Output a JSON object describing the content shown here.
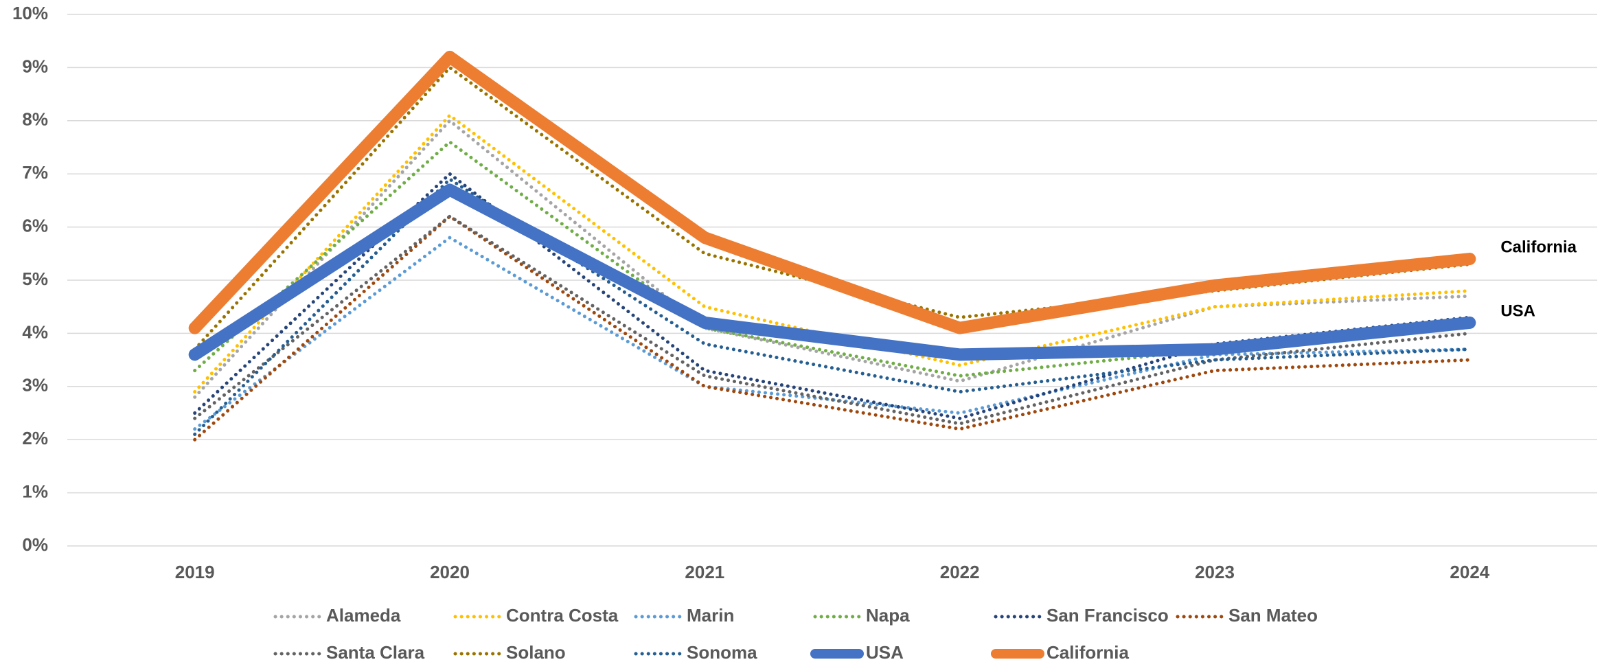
{
  "chart_data": {
    "type": "line",
    "categories": [
      "2019",
      "2020",
      "2021",
      "2022",
      "2023",
      "2024"
    ],
    "ylim": [
      0,
      10
    ],
    "yticks": [
      {
        "value": 0,
        "label": "0%"
      },
      {
        "value": 1,
        "label": "1%"
      },
      {
        "value": 2,
        "label": "2%"
      },
      {
        "value": 3,
        "label": "3%"
      },
      {
        "value": 4,
        "label": "4%"
      },
      {
        "value": 5,
        "label": "5%"
      },
      {
        "value": 6,
        "label": "6%"
      },
      {
        "value": 7,
        "label": "7%"
      },
      {
        "value": 8,
        "label": "8%"
      },
      {
        "value": 9,
        "label": "9%"
      },
      {
        "value": 10,
        "label": "10%"
      }
    ],
    "grid": true,
    "legend": "bottom",
    "series": [
      {
        "name": "Alameda",
        "color": "#a5a5a5",
        "style": "dotted",
        "values": [
          2.8,
          8.0,
          4.1,
          3.1,
          4.5,
          4.7
        ]
      },
      {
        "name": "Contra Costa",
        "color": "#ffc000",
        "style": "dotted",
        "values": [
          2.9,
          8.1,
          4.5,
          3.4,
          4.5,
          4.8
        ]
      },
      {
        "name": "Marin",
        "color": "#5b9bd5",
        "style": "dotted",
        "values": [
          2.2,
          5.8,
          3.0,
          2.5,
          3.6,
          3.7
        ]
      },
      {
        "name": "Napa",
        "color": "#70ad47",
        "style": "dotted",
        "values": [
          3.3,
          7.6,
          4.1,
          3.2,
          3.7,
          4.2
        ]
      },
      {
        "name": "San Francisco",
        "color": "#264478",
        "style": "dotted",
        "values": [
          2.5,
          7.0,
          3.3,
          2.4,
          3.8,
          4.3
        ]
      },
      {
        "name": "San Mateo",
        "color": "#9e480e",
        "style": "dotted",
        "values": [
          2.0,
          6.2,
          3.0,
          2.2,
          3.3,
          3.5
        ]
      },
      {
        "name": "Santa Clara",
        "color": "#636363",
        "style": "dotted",
        "values": [
          2.4,
          6.2,
          3.2,
          2.3,
          3.5,
          4.0
        ]
      },
      {
        "name": "Solano",
        "color": "#997300",
        "style": "dotted",
        "values": [
          3.7,
          9.0,
          5.5,
          4.3,
          4.8,
          5.3
        ]
      },
      {
        "name": "Sonoma",
        "color": "#255e91",
        "style": "dotted",
        "values": [
          2.1,
          6.9,
          3.8,
          2.9,
          3.5,
          3.7
        ]
      },
      {
        "name": "USA",
        "color": "#4472c4",
        "style": "solid",
        "end_label": true,
        "values": [
          3.6,
          6.7,
          4.2,
          3.6,
          3.7,
          4.2
        ]
      },
      {
        "name": "California",
        "color": "#ed7d31",
        "style": "solid",
        "end_label": true,
        "values": [
          4.1,
          9.2,
          5.8,
          4.1,
          4.9,
          5.4
        ]
      }
    ]
  }
}
